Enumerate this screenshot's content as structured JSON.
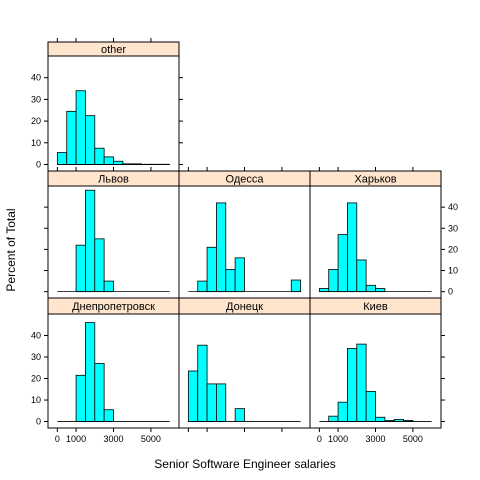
{
  "chart_data": {
    "type": "bar",
    "title": "",
    "xlabel": "Senior Software Engineer salaries",
    "ylabel": "Percent of Total",
    "xlim": [
      -500,
      6500
    ],
    "ylim": [
      -3,
      50
    ],
    "x_ticks": [
      0,
      1000,
      3000,
      5000
    ],
    "y_ticks": [
      0,
      10,
      20,
      30,
      40
    ],
    "bin_edges": [
      0,
      500,
      1000,
      1500,
      2000,
      2500,
      3000,
      3500,
      4000,
      4500,
      5000,
      5500,
      6000
    ],
    "bar_color": "#00ffff",
    "strip_color": "#ffe5cc",
    "panels": [
      {
        "name": "other",
        "values": [
          5.5,
          24.5,
          34,
          22.5,
          7.5,
          3.5,
          1.5,
          0.3,
          0.3,
          0.1,
          0.1,
          0.1
        ]
      },
      {
        "name": "Львов",
        "values": [
          0,
          0,
          22,
          48,
          25,
          5,
          0,
          0,
          0,
          0,
          0,
          0
        ]
      },
      {
        "name": "Одесса",
        "values": [
          0,
          5,
          21,
          42,
          10.5,
          16,
          0,
          0,
          0,
          0,
          0,
          5.5
        ]
      },
      {
        "name": "Харьков",
        "values": [
          1.5,
          10.5,
          27,
          42,
          15,
          3,
          1.5,
          0,
          0,
          0,
          0,
          0
        ]
      },
      {
        "name": "Днепропетровск",
        "values": [
          0,
          0,
          21.5,
          46,
          27,
          5.5,
          0,
          0,
          0,
          0,
          0,
          0
        ]
      },
      {
        "name": "Донецк",
        "values": [
          23.5,
          35.5,
          17.5,
          17.5,
          0,
          6,
          0,
          0,
          0,
          0,
          0,
          0
        ]
      },
      {
        "name": "Киев",
        "values": [
          0,
          2.5,
          9,
          34,
          36,
          14,
          2,
          0.5,
          1,
          0.5,
          0,
          0
        ]
      }
    ]
  }
}
